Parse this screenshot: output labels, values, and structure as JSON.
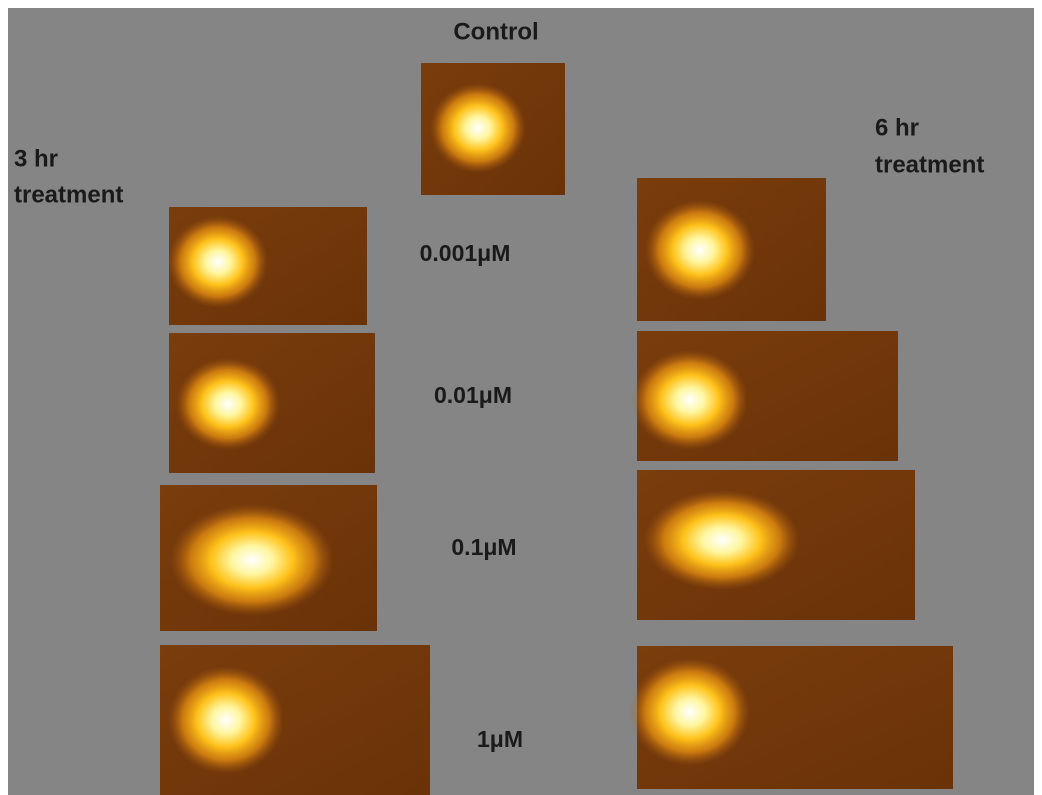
{
  "title": "Control",
  "left_group": {
    "lines": [
      "3 hr",
      "treatment"
    ]
  },
  "right_group": {
    "lines": [
      "6 hr",
      "treatment"
    ]
  },
  "concentrations": [
    "0.001μM",
    "0.01μM",
    "0.1μM",
    "1μM"
  ]
}
